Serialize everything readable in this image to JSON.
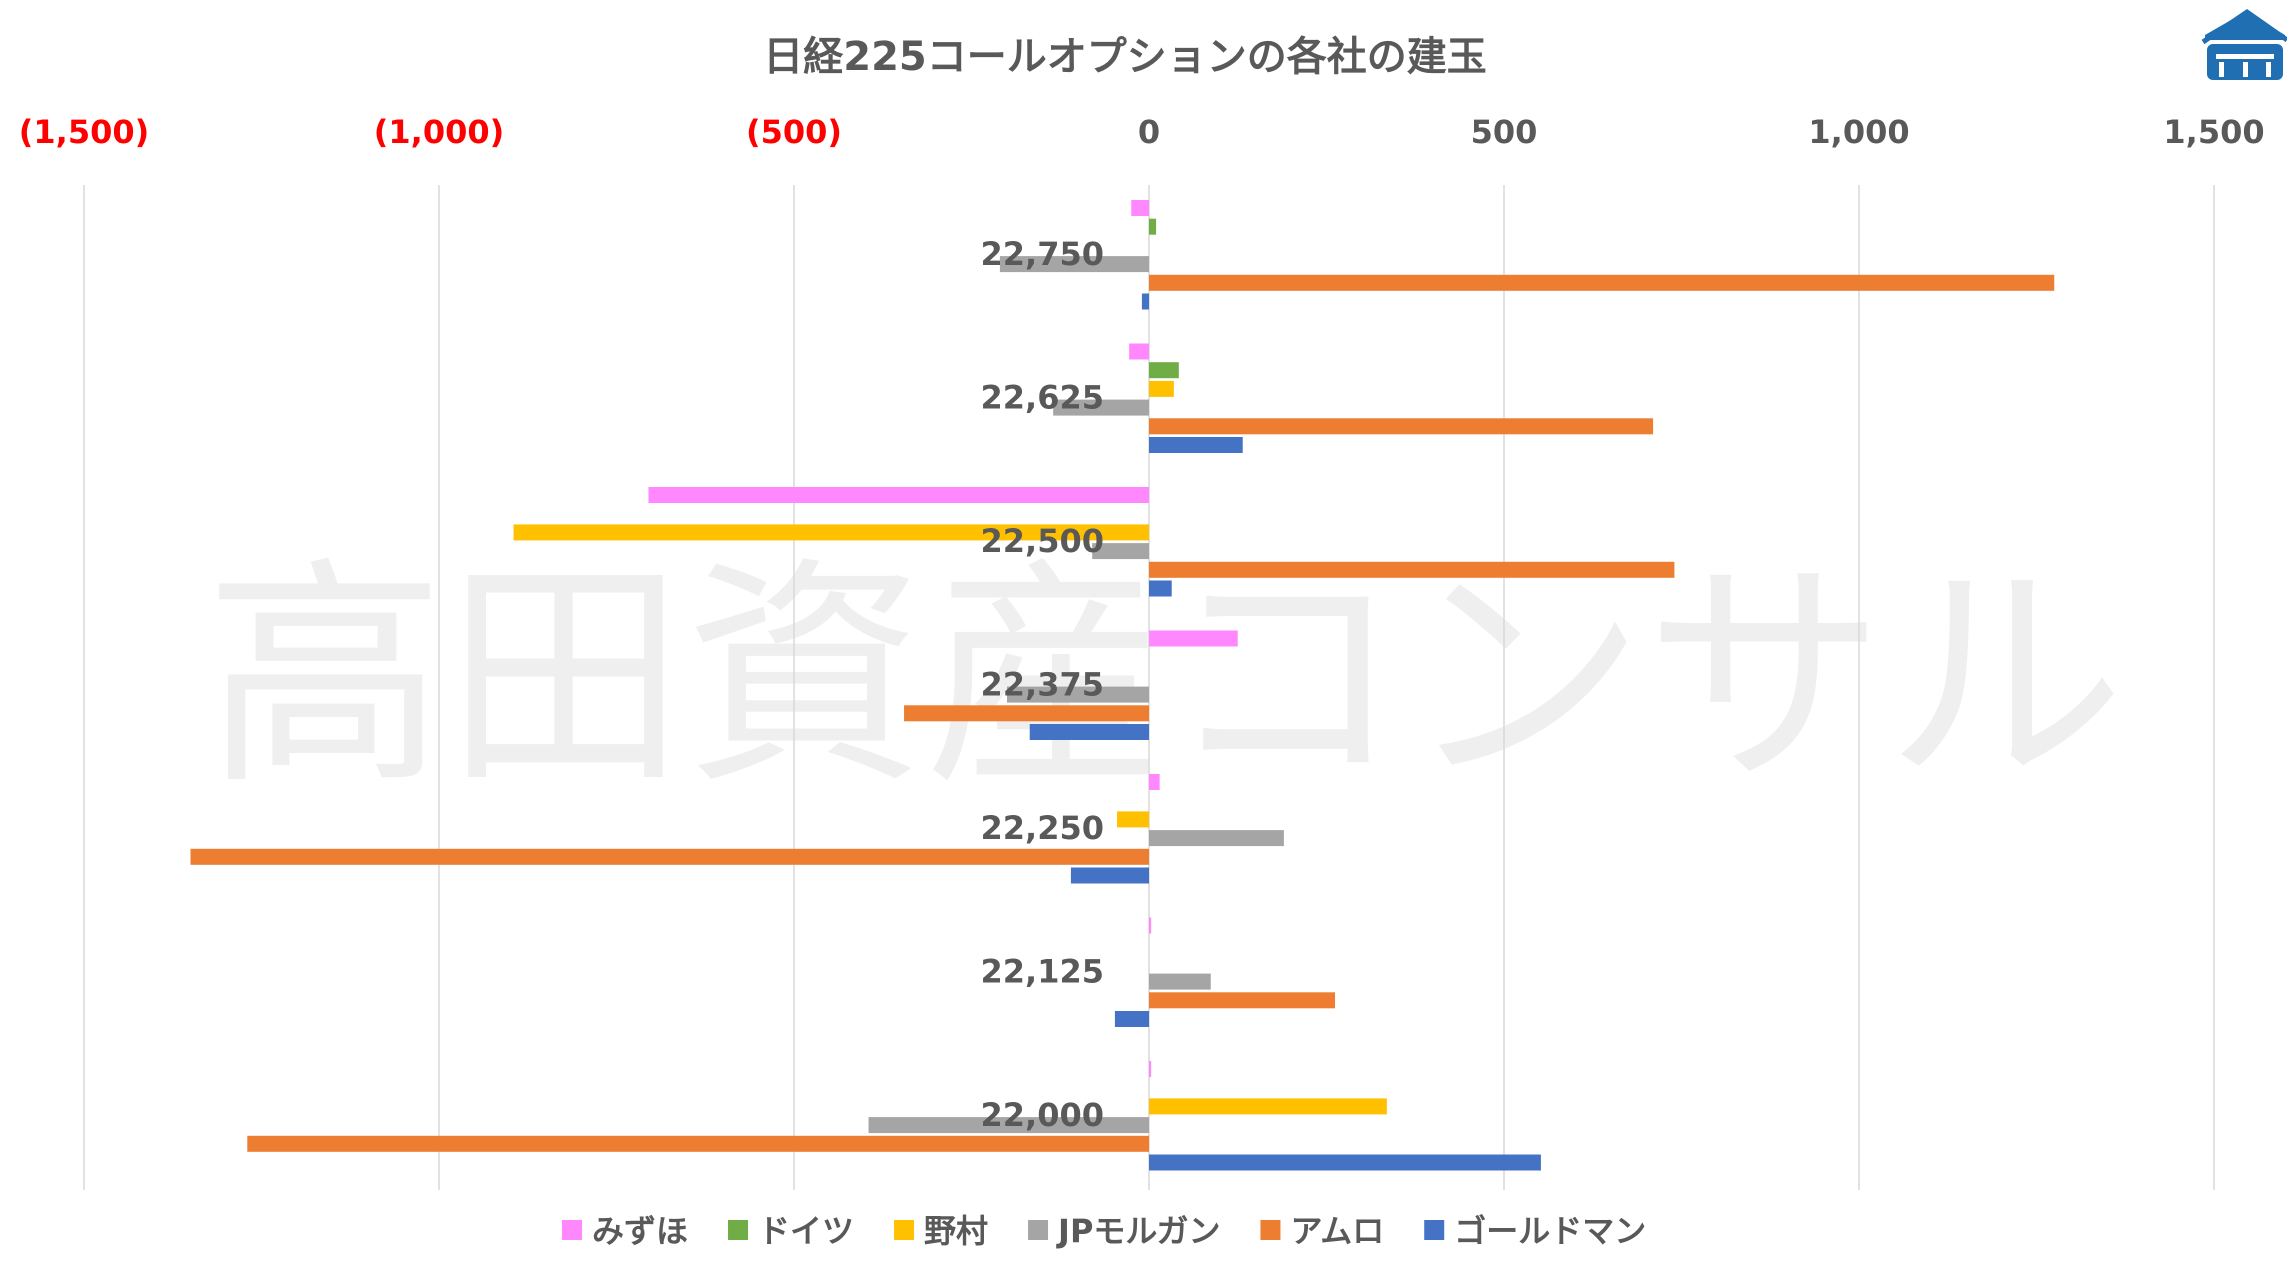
{
  "watermark": "高田資産コンサル",
  "logo": {
    "icon": "building-logo-icon",
    "color": "#1f6fb2"
  },
  "chart_data": {
    "type": "bar",
    "orientation": "horizontal",
    "title": "日経225コールオプションの各社の建玉",
    "xlim": [
      -1500,
      1500
    ],
    "x_ticks": [
      {
        "value": -1500,
        "label": "(1,500)",
        "color": "#ff0000"
      },
      {
        "value": -1000,
        "label": "(1,000)",
        "color": "#ff0000"
      },
      {
        "value": -500,
        "label": "(500)",
        "color": "#ff0000"
      },
      {
        "value": 0,
        "label": "0",
        "color": "#595959"
      },
      {
        "value": 500,
        "label": "500",
        "color": "#595959"
      },
      {
        "value": 1000,
        "label": "1,000",
        "color": "#595959"
      },
      {
        "value": 1500,
        "label": "1,500",
        "color": "#595959"
      }
    ],
    "x_axis_position": "top",
    "grid": true,
    "legend_position": "bottom",
    "categories": [
      "22,750",
      "22,625",
      "22,500",
      "22,375",
      "22,250",
      "22,125",
      "22,000"
    ],
    "series": [
      {
        "name": "みずほ",
        "color": "#ff88ff",
        "values": [
          -25,
          -28,
          -705,
          125,
          15,
          3,
          3
        ]
      },
      {
        "name": "ドイツ",
        "color": "#70ad47",
        "values": [
          10,
          42,
          0,
          0,
          0,
          0,
          0
        ]
      },
      {
        "name": "野村",
        "color": "#ffc000",
        "values": [
          0,
          35,
          -895,
          0,
          -45,
          0,
          335
        ]
      },
      {
        "name": "JPモルガン",
        "color": "#a5a5a5",
        "values": [
          -210,
          -135,
          -80,
          -200,
          190,
          87,
          -395
        ]
      },
      {
        "name": "アムロ",
        "color": "#ed7d31",
        "values": [
          1275,
          710,
          740,
          -345,
          -1350,
          262,
          -1270
        ]
      },
      {
        "name": "ゴールドマン",
        "color": "#4472c4",
        "values": [
          -10,
          132,
          32,
          -168,
          -110,
          -48,
          552
        ]
      }
    ]
  }
}
